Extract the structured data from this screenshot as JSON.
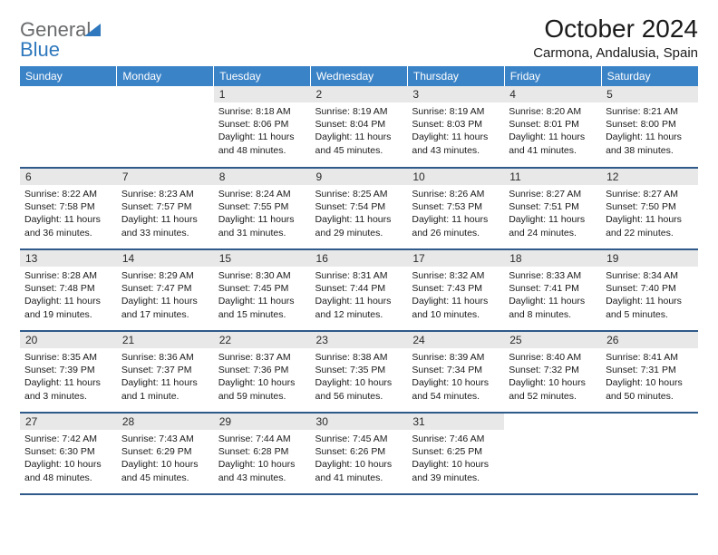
{
  "logo": {
    "part1": "General",
    "part2": "Blue"
  },
  "title": "October 2024",
  "location": "Carmona, Andalusia, Spain",
  "colors": {
    "header_bg": "#3b83c7",
    "header_text": "#ffffff",
    "daynum_bg": "#e8e8e8",
    "row_border": "#2f5a8a",
    "logo_grey": "#6a6b6d",
    "logo_blue": "#2f78bd"
  },
  "typography": {
    "title_fontsize": 28,
    "location_fontsize": 15,
    "weekday_fontsize": 12,
    "daynum_fontsize": 12,
    "body_fontsize": 10.5
  },
  "weekdays": [
    "Sunday",
    "Monday",
    "Tuesday",
    "Wednesday",
    "Thursday",
    "Friday",
    "Saturday"
  ],
  "weeks": [
    [
      null,
      null,
      {
        "n": "1",
        "sr": "Sunrise: 8:18 AM",
        "ss": "Sunset: 8:06 PM",
        "d1": "Daylight: 11 hours",
        "d2": "and 48 minutes."
      },
      {
        "n": "2",
        "sr": "Sunrise: 8:19 AM",
        "ss": "Sunset: 8:04 PM",
        "d1": "Daylight: 11 hours",
        "d2": "and 45 minutes."
      },
      {
        "n": "3",
        "sr": "Sunrise: 8:19 AM",
        "ss": "Sunset: 8:03 PM",
        "d1": "Daylight: 11 hours",
        "d2": "and 43 minutes."
      },
      {
        "n": "4",
        "sr": "Sunrise: 8:20 AM",
        "ss": "Sunset: 8:01 PM",
        "d1": "Daylight: 11 hours",
        "d2": "and 41 minutes."
      },
      {
        "n": "5",
        "sr": "Sunrise: 8:21 AM",
        "ss": "Sunset: 8:00 PM",
        "d1": "Daylight: 11 hours",
        "d2": "and 38 minutes."
      }
    ],
    [
      {
        "n": "6",
        "sr": "Sunrise: 8:22 AM",
        "ss": "Sunset: 7:58 PM",
        "d1": "Daylight: 11 hours",
        "d2": "and 36 minutes."
      },
      {
        "n": "7",
        "sr": "Sunrise: 8:23 AM",
        "ss": "Sunset: 7:57 PM",
        "d1": "Daylight: 11 hours",
        "d2": "and 33 minutes."
      },
      {
        "n": "8",
        "sr": "Sunrise: 8:24 AM",
        "ss": "Sunset: 7:55 PM",
        "d1": "Daylight: 11 hours",
        "d2": "and 31 minutes."
      },
      {
        "n": "9",
        "sr": "Sunrise: 8:25 AM",
        "ss": "Sunset: 7:54 PM",
        "d1": "Daylight: 11 hours",
        "d2": "and 29 minutes."
      },
      {
        "n": "10",
        "sr": "Sunrise: 8:26 AM",
        "ss": "Sunset: 7:53 PM",
        "d1": "Daylight: 11 hours",
        "d2": "and 26 minutes."
      },
      {
        "n": "11",
        "sr": "Sunrise: 8:27 AM",
        "ss": "Sunset: 7:51 PM",
        "d1": "Daylight: 11 hours",
        "d2": "and 24 minutes."
      },
      {
        "n": "12",
        "sr": "Sunrise: 8:27 AM",
        "ss": "Sunset: 7:50 PM",
        "d1": "Daylight: 11 hours",
        "d2": "and 22 minutes."
      }
    ],
    [
      {
        "n": "13",
        "sr": "Sunrise: 8:28 AM",
        "ss": "Sunset: 7:48 PM",
        "d1": "Daylight: 11 hours",
        "d2": "and 19 minutes."
      },
      {
        "n": "14",
        "sr": "Sunrise: 8:29 AM",
        "ss": "Sunset: 7:47 PM",
        "d1": "Daylight: 11 hours",
        "d2": "and 17 minutes."
      },
      {
        "n": "15",
        "sr": "Sunrise: 8:30 AM",
        "ss": "Sunset: 7:45 PM",
        "d1": "Daylight: 11 hours",
        "d2": "and 15 minutes."
      },
      {
        "n": "16",
        "sr": "Sunrise: 8:31 AM",
        "ss": "Sunset: 7:44 PM",
        "d1": "Daylight: 11 hours",
        "d2": "and 12 minutes."
      },
      {
        "n": "17",
        "sr": "Sunrise: 8:32 AM",
        "ss": "Sunset: 7:43 PM",
        "d1": "Daylight: 11 hours",
        "d2": "and 10 minutes."
      },
      {
        "n": "18",
        "sr": "Sunrise: 8:33 AM",
        "ss": "Sunset: 7:41 PM",
        "d1": "Daylight: 11 hours",
        "d2": "and 8 minutes."
      },
      {
        "n": "19",
        "sr": "Sunrise: 8:34 AM",
        "ss": "Sunset: 7:40 PM",
        "d1": "Daylight: 11 hours",
        "d2": "and 5 minutes."
      }
    ],
    [
      {
        "n": "20",
        "sr": "Sunrise: 8:35 AM",
        "ss": "Sunset: 7:39 PM",
        "d1": "Daylight: 11 hours",
        "d2": "and 3 minutes."
      },
      {
        "n": "21",
        "sr": "Sunrise: 8:36 AM",
        "ss": "Sunset: 7:37 PM",
        "d1": "Daylight: 11 hours",
        "d2": "and 1 minute."
      },
      {
        "n": "22",
        "sr": "Sunrise: 8:37 AM",
        "ss": "Sunset: 7:36 PM",
        "d1": "Daylight: 10 hours",
        "d2": "and 59 minutes."
      },
      {
        "n": "23",
        "sr": "Sunrise: 8:38 AM",
        "ss": "Sunset: 7:35 PM",
        "d1": "Daylight: 10 hours",
        "d2": "and 56 minutes."
      },
      {
        "n": "24",
        "sr": "Sunrise: 8:39 AM",
        "ss": "Sunset: 7:34 PM",
        "d1": "Daylight: 10 hours",
        "d2": "and 54 minutes."
      },
      {
        "n": "25",
        "sr": "Sunrise: 8:40 AM",
        "ss": "Sunset: 7:32 PM",
        "d1": "Daylight: 10 hours",
        "d2": "and 52 minutes."
      },
      {
        "n": "26",
        "sr": "Sunrise: 8:41 AM",
        "ss": "Sunset: 7:31 PM",
        "d1": "Daylight: 10 hours",
        "d2": "and 50 minutes."
      }
    ],
    [
      {
        "n": "27",
        "sr": "Sunrise: 7:42 AM",
        "ss": "Sunset: 6:30 PM",
        "d1": "Daylight: 10 hours",
        "d2": "and 48 minutes."
      },
      {
        "n": "28",
        "sr": "Sunrise: 7:43 AM",
        "ss": "Sunset: 6:29 PM",
        "d1": "Daylight: 10 hours",
        "d2": "and 45 minutes."
      },
      {
        "n": "29",
        "sr": "Sunrise: 7:44 AM",
        "ss": "Sunset: 6:28 PM",
        "d1": "Daylight: 10 hours",
        "d2": "and 43 minutes."
      },
      {
        "n": "30",
        "sr": "Sunrise: 7:45 AM",
        "ss": "Sunset: 6:26 PM",
        "d1": "Daylight: 10 hours",
        "d2": "and 41 minutes."
      },
      {
        "n": "31",
        "sr": "Sunrise: 7:46 AM",
        "ss": "Sunset: 6:25 PM",
        "d1": "Daylight: 10 hours",
        "d2": "and 39 minutes."
      },
      null,
      null
    ]
  ]
}
